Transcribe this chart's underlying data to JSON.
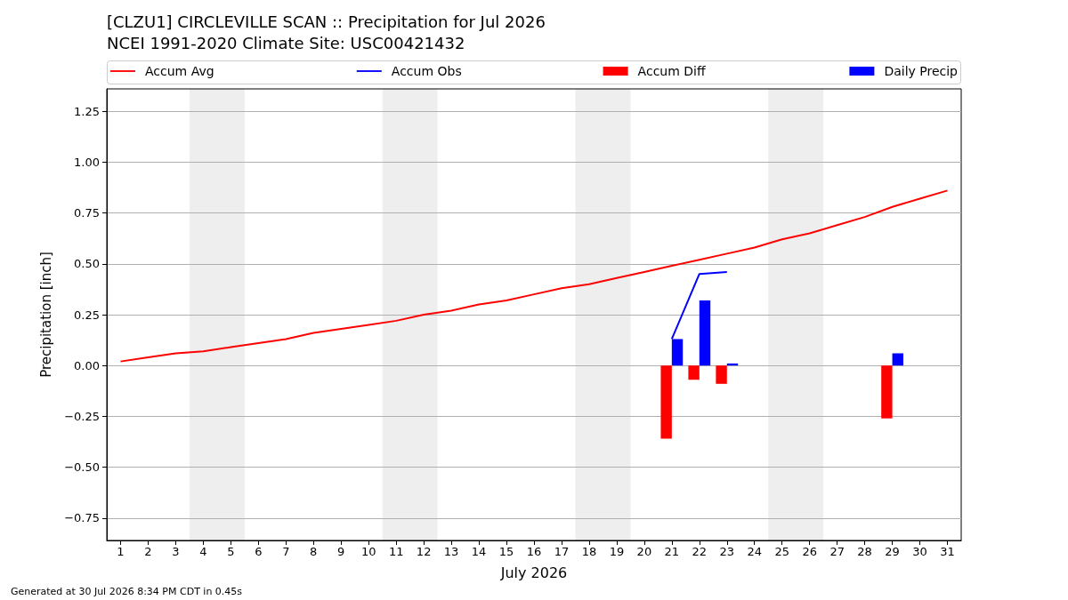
{
  "chart_data": {
    "type": "line",
    "title": "[CLZU1] CIRCLEVILLE SCAN :: Precipitation for Jul 2026",
    "subtitle": "NCEI 1991-2020 Climate Site: USC00421432",
    "xlabel": "July 2026",
    "ylabel": "Precipitation [inch]",
    "annotations": [
      "Generated at 30 Jul 2026 8:34 PM CDT in 0.45s"
    ],
    "xlim": [
      0.5,
      31.5
    ],
    "xticks": [
      1,
      2,
      3,
      4,
      5,
      6,
      7,
      8,
      9,
      10,
      11,
      12,
      13,
      14,
      15,
      16,
      17,
      18,
      19,
      20,
      21,
      22,
      23,
      24,
      25,
      26,
      27,
      28,
      29,
      30,
      31
    ],
    "ylim": [
      -0.86,
      1.36
    ],
    "yticks": [
      {
        "value": -0.75,
        "label": "−0.75"
      },
      {
        "value": -0.5,
        "label": "−0.50"
      },
      {
        "value": -0.25,
        "label": "−0.25"
      },
      {
        "value": 0,
        "label": "0.00"
      },
      0.25,
      {
        "value": 0.5,
        "label": "0.50"
      },
      0.75,
      {
        "value": 1,
        "label": "1.00"
      },
      1.25
    ],
    "grid": "y",
    "legend": "top",
    "line_style": "solid",
    "bands": [
      {
        "axis": "x",
        "from": 3.5,
        "to": 5.5,
        "color": "#eeeeee"
      },
      {
        "axis": "x",
        "from": 10.5,
        "to": 12.5,
        "color": "#eeeeee"
      },
      {
        "axis": "x",
        "from": 17.5,
        "to": 19.5,
        "color": "#eeeeee"
      },
      {
        "axis": "x",
        "from": 24.5,
        "to": 26.5,
        "color": "#eeeeee"
      }
    ],
    "series": [
      {
        "name": "Accum Avg",
        "color": "#ff0000",
        "x": [
          1,
          2,
          3,
          4,
          5,
          6,
          7,
          8,
          9,
          10,
          11,
          12,
          13,
          14,
          15,
          16,
          17,
          18,
          19,
          20,
          21,
          22,
          23,
          24,
          25,
          26,
          27,
          28,
          29,
          30,
          31
        ],
        "values": [
          0.02,
          0.04,
          0.06,
          0.07,
          0.09,
          0.11,
          0.13,
          0.16,
          0.18,
          0.2,
          0.22,
          0.25,
          0.27,
          0.3,
          0.32,
          0.35,
          0.38,
          0.4,
          0.43,
          0.46,
          0.49,
          0.52,
          0.55,
          0.58,
          0.62,
          0.65,
          0.69,
          0.73,
          0.78,
          0.82,
          0.86
        ]
      },
      {
        "name": "Accum Obs",
        "color": "#0000ff",
        "x": [
          21,
          22,
          23
        ],
        "values": [
          0.13,
          0.45,
          0.46
        ]
      },
      {
        "name": "Accum Diff",
        "type": "bar",
        "color": "#ff0000",
        "x": [
          21,
          22,
          23,
          29
        ],
        "values": [
          -0.36,
          -0.07,
          -0.09,
          -0.26
        ]
      },
      {
        "name": "Daily Precip",
        "type": "bar",
        "color": "#0000ff",
        "x": [
          21,
          22,
          23,
          29
        ],
        "values": [
          0.13,
          0.32,
          0.01,
          0.06
        ]
      }
    ]
  }
}
